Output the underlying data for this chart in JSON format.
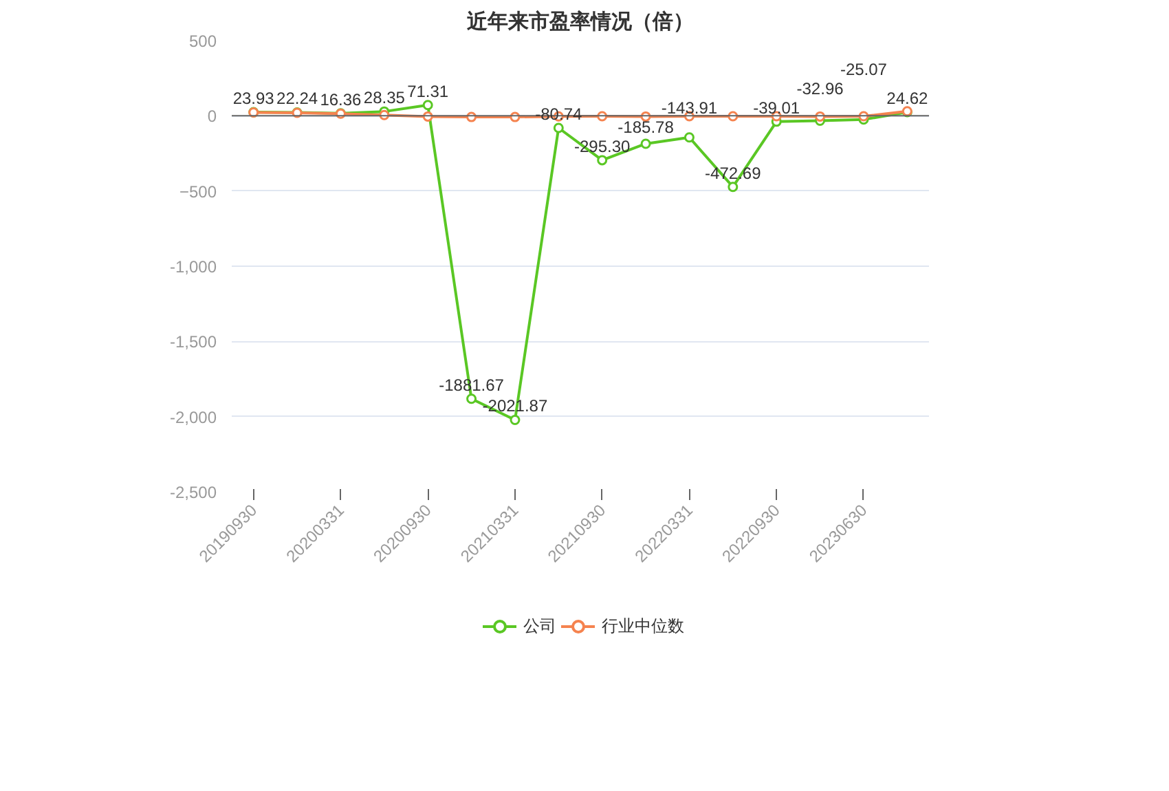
{
  "chart_data": {
    "type": "line",
    "title": "近年来市盈率情况（倍）",
    "categories": [
      "20190930",
      null,
      "20200331",
      null,
      "20200930",
      null,
      "20210331",
      null,
      "20210930",
      null,
      "20220331",
      null,
      "20220930",
      null,
      "20230630",
      null
    ],
    "series": [
      {
        "name": "公司",
        "color": "#5ac724",
        "values": [
          23.93,
          22.24,
          16.36,
          28.35,
          71.31,
          -1881.67,
          -2021.87,
          -80.74,
          -295.3,
          -185.78,
          -143.91,
          -472.69,
          -39.01,
          -32.96,
          -25.07,
          24.62
        ],
        "value_labels": [
          "23.93",
          "22.24",
          "16.36",
          "28.35",
          "71.31",
          "-1881.67",
          "-2021.87",
          "-80.74",
          "-295.30",
          "-185.78",
          "-143.91",
          "-472.69",
          "-39.01",
          "-32.96",
          "-25.07",
          "24.62"
        ]
      },
      {
        "name": "行业中位数",
        "color": "#f5834f",
        "values": [
          22,
          20,
          14,
          5,
          -5,
          -8,
          -8,
          -4,
          -3,
          -5,
          -3,
          -3,
          -3,
          -5,
          -3,
          30
        ]
      }
    ],
    "ylim": [
      -2500,
      500
    ],
    "yticks": [
      {
        "value": -2500,
        "label": "-2,500"
      },
      {
        "value": -2000,
        "label": "-2,000"
      },
      {
        "value": -1500,
        "label": "-1,500"
      },
      {
        "value": -1000,
        "label": "-1,000"
      },
      -500,
      0,
      500
    ],
    "grid": "y",
    "legend": "bottom",
    "marker": "circle",
    "line_style": "solid"
  }
}
